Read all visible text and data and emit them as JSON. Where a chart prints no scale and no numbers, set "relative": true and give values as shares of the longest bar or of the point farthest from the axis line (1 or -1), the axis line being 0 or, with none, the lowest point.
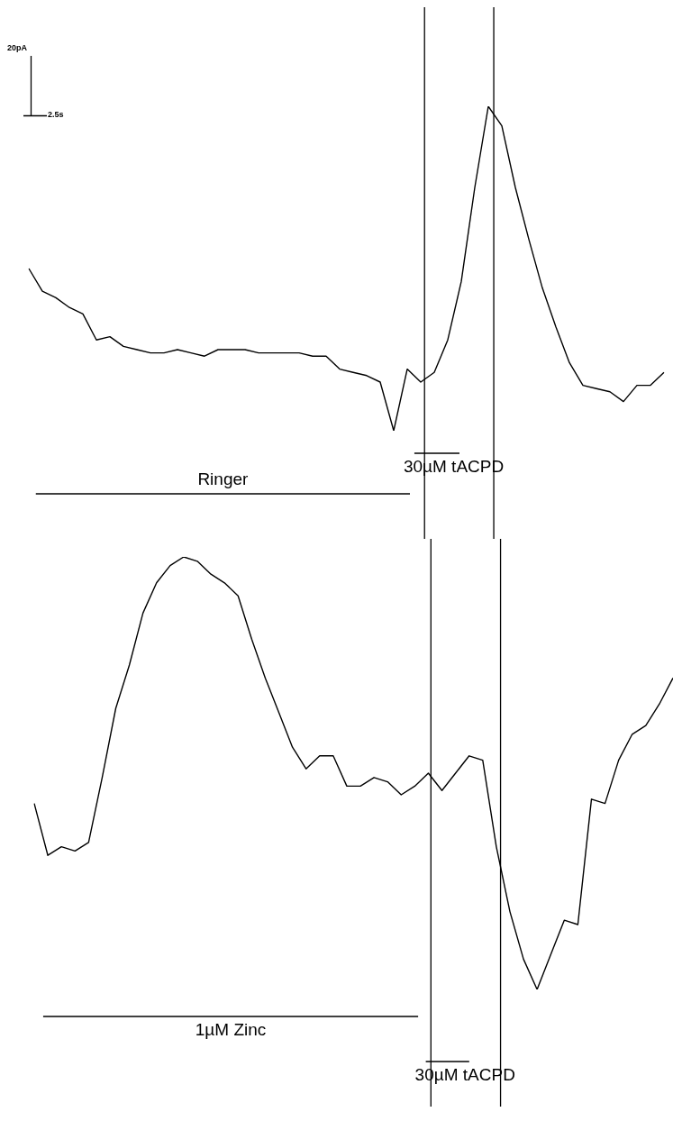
{
  "chart_data": [
    {
      "type": "line",
      "relative": true,
      "annotations": [
        "20pA",
        "2.5s",
        "30µM tACPD",
        "Ringer"
      ],
      "categories": [
        null,
        null,
        null,
        null,
        null,
        null,
        null,
        null,
        null,
        null,
        null,
        null,
        null,
        null,
        null,
        null,
        null,
        null,
        null,
        null,
        null,
        null,
        null,
        null,
        null,
        null,
        null,
        null,
        null,
        null,
        null,
        null,
        null,
        null,
        null,
        null,
        null,
        null,
        null,
        null,
        null,
        null,
        null,
        null,
        null,
        null,
        null,
        null
      ],
      "series": [
        {
          "color": "#000000",
          "values": [
            0.5,
            0.43,
            0.41,
            0.38,
            0.36,
            0.28,
            0.29,
            0.26,
            0.25,
            0.24,
            0.24,
            0.25,
            0.24,
            0.23,
            0.25,
            0.25,
            0.25,
            0.24,
            0.24,
            0.24,
            0.24,
            0.23,
            0.23,
            0.19,
            0.18,
            0.17,
            0.15,
            0,
            0.19,
            0.15,
            0.18,
            0.28,
            0.46,
            0.75,
            1,
            0.94,
            0.75,
            0.59,
            0.44,
            0.32,
            0.21,
            0.14,
            0.13,
            0.12,
            0.09,
            0.14,
            0.14,
            0.18
          ]
        }
      ]
    },
    {
      "type": "line",
      "relative": true,
      "annotations": [
        "1µM Zinc",
        "30µM tACPD"
      ],
      "categories": [
        null,
        null,
        null,
        null,
        null,
        null,
        null,
        null,
        null,
        null,
        null,
        null,
        null,
        null,
        null,
        null,
        null,
        null,
        null,
        null,
        null,
        null,
        null,
        null,
        null,
        null,
        null,
        null,
        null,
        null,
        null,
        null,
        null,
        null,
        null,
        null,
        null,
        null,
        null,
        null,
        null,
        null,
        null,
        null,
        null,
        null,
        null,
        null
      ],
      "series": [
        {
          "color": "#000000",
          "values": [
            0.43,
            0.31,
            0.33,
            0.32,
            0.34,
            0.49,
            0.65,
            0.75,
            0.87,
            0.94,
            0.98,
            1,
            0.99,
            0.96,
            0.94,
            0.91,
            0.81,
            0.72,
            0.64,
            0.56,
            0.51,
            0.54,
            0.54,
            0.47,
            0.47,
            0.49,
            0.48,
            0.45,
            0.47,
            0.5,
            0.46,
            0.5,
            0.54,
            0.53,
            0.33,
            0.18,
            0.07,
            0,
            0.08,
            0.16,
            0.15,
            0.44,
            0.43,
            0.53,
            0.59,
            0.61,
            0.66,
            0.72
          ]
        }
      ]
    }
  ]
}
